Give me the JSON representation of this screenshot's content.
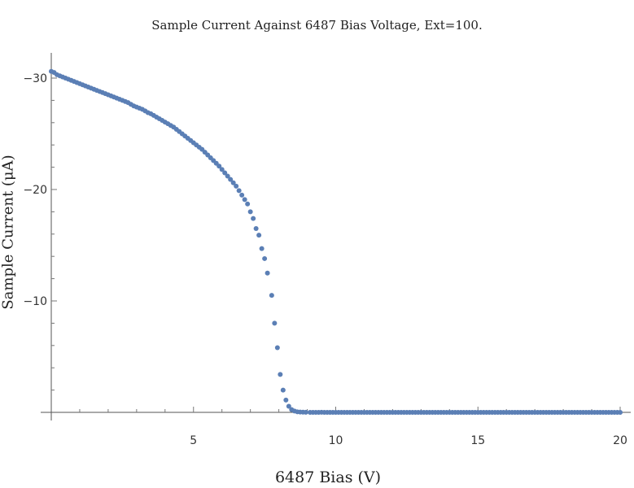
{
  "chart_data": {
    "type": "scatter",
    "title": "Sample Current Against 6487 Bias Voltage, Ext=100.",
    "xlabel": "6487 Bias (V)",
    "ylabel": "Sample Current (μA)",
    "xlim": [
      0,
      20
    ],
    "ylim": [
      0,
      -32
    ],
    "x_ticks": [
      "5",
      "10",
      "15",
      "20"
    ],
    "y_ticks": [
      "−30",
      "−20",
      "−10"
    ],
    "grid": false,
    "marker_color": "#5b7fb5",
    "series": [
      {
        "points": [
          [
            0.0,
            -30.6
          ],
          [
            0.1,
            -30.5
          ],
          [
            0.2,
            -30.3
          ],
          [
            0.3,
            -30.2
          ],
          [
            0.4,
            -30.1
          ],
          [
            0.5,
            -30.0
          ],
          [
            0.6,
            -29.9
          ],
          [
            0.7,
            -29.8
          ],
          [
            0.8,
            -29.7
          ],
          [
            0.9,
            -29.6
          ],
          [
            1.0,
            -29.5
          ],
          [
            1.1,
            -29.4
          ],
          [
            1.2,
            -29.3
          ],
          [
            1.3,
            -29.2
          ],
          [
            1.4,
            -29.1
          ],
          [
            1.5,
            -29.0
          ],
          [
            1.6,
            -28.9
          ],
          [
            1.7,
            -28.8
          ],
          [
            1.8,
            -28.7
          ],
          [
            1.9,
            -28.6
          ],
          [
            2.0,
            -28.5
          ],
          [
            2.1,
            -28.4
          ],
          [
            2.2,
            -28.3
          ],
          [
            2.3,
            -28.2
          ],
          [
            2.4,
            -28.1
          ],
          [
            2.5,
            -28.0
          ],
          [
            2.6,
            -27.9
          ],
          [
            2.7,
            -27.8
          ],
          [
            2.8,
            -27.65
          ],
          [
            2.9,
            -27.5
          ],
          [
            3.0,
            -27.4
          ],
          [
            3.1,
            -27.3
          ],
          [
            3.2,
            -27.2
          ],
          [
            3.3,
            -27.05
          ],
          [
            3.4,
            -26.9
          ],
          [
            3.5,
            -26.8
          ],
          [
            3.6,
            -26.65
          ],
          [
            3.7,
            -26.5
          ],
          [
            3.8,
            -26.35
          ],
          [
            3.9,
            -26.2
          ],
          [
            4.0,
            -26.05
          ],
          [
            4.1,
            -25.9
          ],
          [
            4.2,
            -25.75
          ],
          [
            4.3,
            -25.6
          ],
          [
            4.4,
            -25.4
          ],
          [
            4.5,
            -25.2
          ],
          [
            4.6,
            -25.0
          ],
          [
            4.7,
            -24.8
          ],
          [
            4.8,
            -24.6
          ],
          [
            4.9,
            -24.4
          ],
          [
            5.0,
            -24.2
          ],
          [
            5.1,
            -24.0
          ],
          [
            5.2,
            -23.8
          ],
          [
            5.3,
            -23.6
          ],
          [
            5.4,
            -23.35
          ],
          [
            5.5,
            -23.1
          ],
          [
            5.6,
            -22.85
          ],
          [
            5.7,
            -22.6
          ],
          [
            5.8,
            -22.35
          ],
          [
            5.9,
            -22.1
          ],
          [
            6.0,
            -21.8
          ],
          [
            6.1,
            -21.5
          ],
          [
            6.2,
            -21.2
          ],
          [
            6.3,
            -20.9
          ],
          [
            6.4,
            -20.6
          ],
          [
            6.5,
            -20.3
          ],
          [
            6.6,
            -19.9
          ],
          [
            6.7,
            -19.5
          ],
          [
            6.8,
            -19.1
          ],
          [
            6.9,
            -18.7
          ],
          [
            7.0,
            -18.0
          ],
          [
            7.1,
            -17.4
          ],
          [
            7.2,
            -16.5
          ],
          [
            7.3,
            -15.9
          ],
          [
            7.4,
            -14.7
          ],
          [
            7.5,
            -13.8
          ],
          [
            7.6,
            -12.5
          ],
          [
            7.75,
            -10.5
          ],
          [
            7.85,
            -8.0
          ],
          [
            7.95,
            -5.8
          ],
          [
            8.05,
            -3.4
          ],
          [
            8.15,
            -2.0
          ],
          [
            8.25,
            -1.1
          ],
          [
            8.35,
            -0.55
          ],
          [
            8.45,
            -0.25
          ],
          [
            8.55,
            -0.12
          ],
          [
            8.65,
            -0.05
          ],
          [
            8.75,
            -0.03
          ],
          [
            8.85,
            -0.02
          ],
          [
            8.95,
            -0.01
          ],
          [
            9.1,
            0.0
          ],
          [
            9.2,
            0.0
          ],
          [
            9.3,
            0.0
          ],
          [
            9.4,
            0.0
          ],
          [
            9.5,
            -0.01
          ],
          [
            9.6,
            0.0
          ],
          [
            9.7,
            0.0
          ],
          [
            9.8,
            0.0
          ],
          [
            9.9,
            0.0
          ],
          [
            10.0,
            0.0
          ],
          [
            10.1,
            0.0
          ],
          [
            10.2,
            0.0
          ],
          [
            10.3,
            0.0
          ],
          [
            10.4,
            0.0
          ],
          [
            10.5,
            0.0
          ],
          [
            10.6,
            0.0
          ],
          [
            10.7,
            0.0
          ],
          [
            10.8,
            0.0
          ],
          [
            10.9,
            0.0
          ],
          [
            11.0,
            0.0
          ],
          [
            11.1,
            0.0
          ],
          [
            11.2,
            0.0
          ],
          [
            11.3,
            0.0
          ],
          [
            11.4,
            0.0
          ],
          [
            11.5,
            0.0
          ],
          [
            11.6,
            0.0
          ],
          [
            11.7,
            0.0
          ],
          [
            11.8,
            0.0
          ],
          [
            11.9,
            0.0
          ],
          [
            12.0,
            0.0
          ],
          [
            12.1,
            0.0
          ],
          [
            12.2,
            0.0
          ],
          [
            12.3,
            0.0
          ],
          [
            12.4,
            0.0
          ],
          [
            12.5,
            0.0
          ],
          [
            12.6,
            0.0
          ],
          [
            12.7,
            0.0
          ],
          [
            12.8,
            0.0
          ],
          [
            12.9,
            0.0
          ],
          [
            13.0,
            0.0
          ],
          [
            13.1,
            0.0
          ],
          [
            13.2,
            0.0
          ],
          [
            13.3,
            0.0
          ],
          [
            13.4,
            0.0
          ],
          [
            13.5,
            0.0
          ],
          [
            13.6,
            0.0
          ],
          [
            13.7,
            0.0
          ],
          [
            13.8,
            0.0
          ],
          [
            13.9,
            0.0
          ],
          [
            14.0,
            0.0
          ],
          [
            14.1,
            0.0
          ],
          [
            14.2,
            0.0
          ],
          [
            14.3,
            0.0
          ],
          [
            14.4,
            0.0
          ],
          [
            14.5,
            0.0
          ],
          [
            14.6,
            0.0
          ],
          [
            14.7,
            0.0
          ],
          [
            14.8,
            0.0
          ],
          [
            14.9,
            0.0
          ],
          [
            15.0,
            0.0
          ],
          [
            15.1,
            0.0
          ],
          [
            15.2,
            0.0
          ],
          [
            15.3,
            0.0
          ],
          [
            15.4,
            0.0
          ],
          [
            15.5,
            0.0
          ],
          [
            15.6,
            0.0
          ],
          [
            15.7,
            0.0
          ],
          [
            15.8,
            0.0
          ],
          [
            15.9,
            0.0
          ],
          [
            16.0,
            0.0
          ],
          [
            16.1,
            0.0
          ],
          [
            16.2,
            0.0
          ],
          [
            16.3,
            0.0
          ],
          [
            16.4,
            0.0
          ],
          [
            16.5,
            0.0
          ],
          [
            16.6,
            0.0
          ],
          [
            16.7,
            0.0
          ],
          [
            16.8,
            0.0
          ],
          [
            16.9,
            0.0
          ],
          [
            17.0,
            0.0
          ],
          [
            17.1,
            0.0
          ],
          [
            17.2,
            0.0
          ],
          [
            17.3,
            0.0
          ],
          [
            17.4,
            0.0
          ],
          [
            17.5,
            0.0
          ],
          [
            17.6,
            0.0
          ],
          [
            17.7,
            0.0
          ],
          [
            17.8,
            0.0
          ],
          [
            17.9,
            0.0
          ],
          [
            18.0,
            0.0
          ],
          [
            18.1,
            0.0
          ],
          [
            18.2,
            0.0
          ],
          [
            18.3,
            0.0
          ],
          [
            18.4,
            0.0
          ],
          [
            18.5,
            0.0
          ],
          [
            18.6,
            0.0
          ],
          [
            18.7,
            0.0
          ],
          [
            18.8,
            0.0
          ],
          [
            18.9,
            0.0
          ],
          [
            19.0,
            0.0
          ],
          [
            19.1,
            0.0
          ],
          [
            19.2,
            0.0
          ],
          [
            19.3,
            0.0
          ],
          [
            19.4,
            0.0
          ],
          [
            19.5,
            0.0
          ],
          [
            19.6,
            0.0
          ],
          [
            19.7,
            0.0
          ],
          [
            19.8,
            0.0
          ],
          [
            19.9,
            0.0
          ],
          [
            20.0,
            0.0
          ]
        ]
      }
    ]
  }
}
